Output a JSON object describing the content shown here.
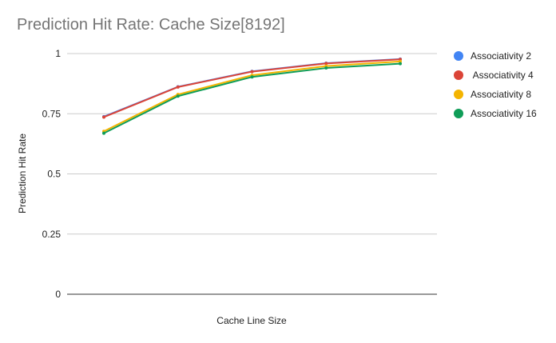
{
  "chart_data": {
    "type": "line",
    "title": "Prediction Hit Rate: Cache Size[8192]",
    "xlabel": "Cache Line Size",
    "ylabel": "Prediction Hit Rate",
    "categories": [
      "",
      "",
      "",
      "",
      ""
    ],
    "ylim": [
      0,
      1
    ],
    "yticks": [
      "0",
      "0.25",
      "0.5",
      "0.75",
      "1"
    ],
    "ytick_values": [
      0,
      0.25,
      0.5,
      0.75,
      1
    ],
    "grid": true,
    "legend_position": "right",
    "series": [
      {
        "name": "Associativity 2",
        "color": "#4285F4",
        "values": [
          0.738,
          0.862,
          0.926,
          0.96,
          0.977
        ]
      },
      {
        "name": " Associativity 4",
        "color": "#DB4437",
        "values": [
          0.736,
          0.861,
          0.925,
          0.959,
          0.976
        ]
      },
      {
        "name": "Associativity 8",
        "color": "#F4B400",
        "values": [
          0.677,
          0.83,
          0.91,
          0.948,
          0.967
        ]
      },
      {
        "name": "Associativity 16",
        "color": "#0F9D58",
        "values": [
          0.669,
          0.823,
          0.903,
          0.94,
          0.958
        ]
      }
    ]
  }
}
